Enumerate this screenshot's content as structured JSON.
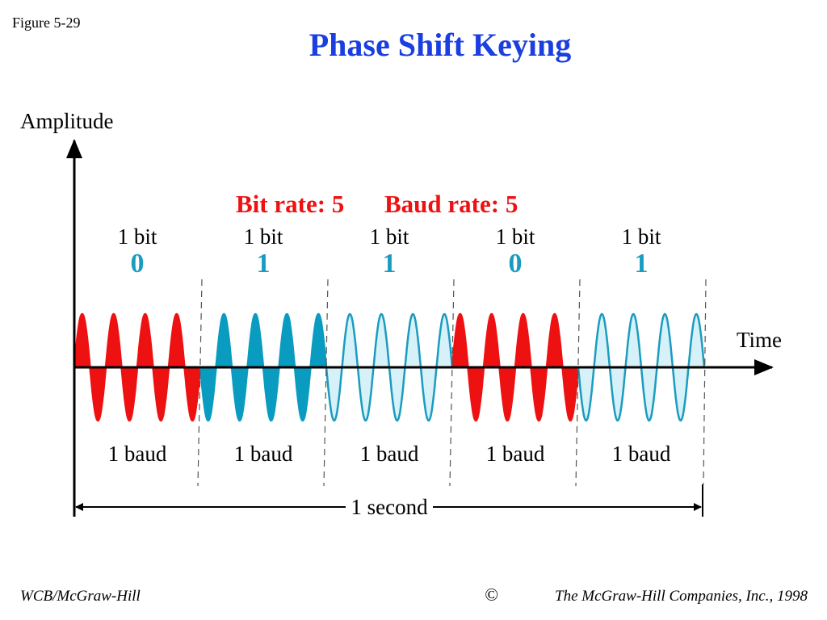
{
  "figure_label": "Figure 5-29",
  "title": "Phase Shift Keying",
  "y_axis_label": "Amplitude",
  "x_axis_label": "Time",
  "bit_rate": "Bit rate: 5",
  "baud_rate": "Baud rate: 5",
  "segments": [
    {
      "unit": "1 bit",
      "bit": "0",
      "baud": "1 baud"
    },
    {
      "unit": "1 bit",
      "bit": "1",
      "baud": "1 baud"
    },
    {
      "unit": "1 bit",
      "bit": "1",
      "baud": "1 baud"
    },
    {
      "unit": "1 bit",
      "bit": "0",
      "baud": "1 baud"
    },
    {
      "unit": "1 bit",
      "bit": "1",
      "baud": "1 baud"
    }
  ],
  "duration": "1 second",
  "footer": {
    "left": "WCB/McGraw-Hill",
    "right": "The McGraw-Hill Companies, Inc., 1998"
  }
}
